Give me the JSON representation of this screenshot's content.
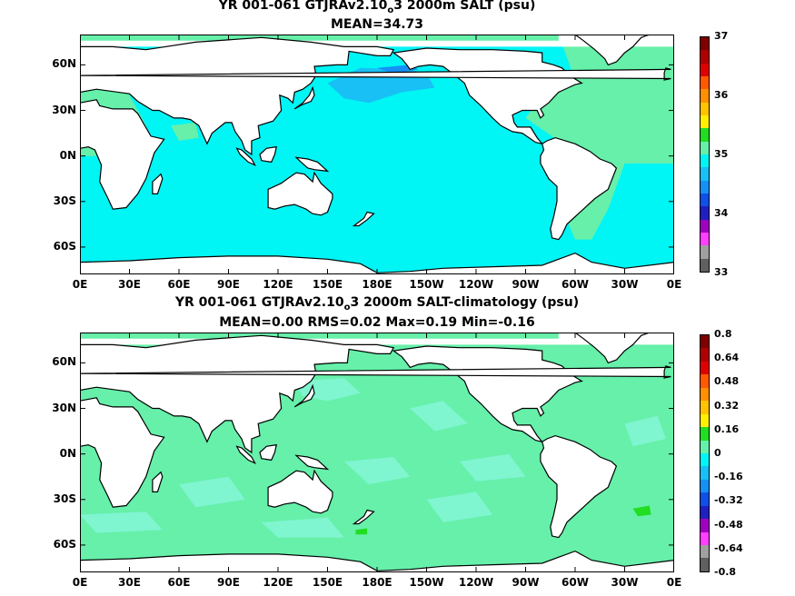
{
  "panel1": {
    "title_prefix": "YR 001-061 GTJRAv2.10",
    "title_sub": "o",
    "title_suffix": "3 2000m SALT (psu)",
    "stats": "MEAN=34.73",
    "colorbar": {
      "labels": [
        "37",
        "36",
        "35",
        "34",
        "33"
      ],
      "colors": [
        "#7f0000",
        "#b00000",
        "#e00000",
        "#ff5a00",
        "#ff9000",
        "#ffc400",
        "#ffef00",
        "#22dd22",
        "#66f0aa",
        "#00f5f5",
        "#18c0f5",
        "#1590f5",
        "#1050e8",
        "#2020c0",
        "#a000c0",
        "#ff40ff",
        "#a0a0a0",
        "#606060"
      ]
    }
  },
  "panel2": {
    "title_prefix": "YR 001-061 GTJRAv2.10",
    "title_sub": "o",
    "title_suffix": "3 2000m SALT-climatology (psu)",
    "stats": "MEAN=0.00   RMS=0.02   Max=0.19   Min=-0.16",
    "colorbar": {
      "labels": [
        "0.8",
        "0.64",
        "0.48",
        "0.32",
        "0.16",
        "0",
        "-0.16",
        "-0.32",
        "-0.48",
        "-0.64",
        "-0.8"
      ],
      "colors": [
        "#7f0000",
        "#b00000",
        "#e00000",
        "#ff5a00",
        "#ff9000",
        "#ffc400",
        "#ffef00",
        "#22dd22",
        "#66f0aa",
        "#00f5f5",
        "#18c0f5",
        "#1590f5",
        "#1050e8",
        "#2020c0",
        "#a000c0",
        "#ff40ff",
        "#a0a0a0",
        "#606060"
      ]
    }
  },
  "axes": {
    "x_ticks": [
      "0E",
      "30E",
      "60E",
      "90E",
      "120E",
      "150E",
      "180E",
      "150W",
      "120W",
      "90W",
      "60W",
      "30W",
      "0E"
    ],
    "y_ticks": [
      "60N",
      "30N",
      "0N",
      "30S",
      "60S"
    ],
    "y_values": [
      60,
      30,
      0,
      -30,
      -60
    ],
    "lat_range": [
      -78,
      80
    ],
    "lon_range": [
      0,
      360
    ]
  }
}
